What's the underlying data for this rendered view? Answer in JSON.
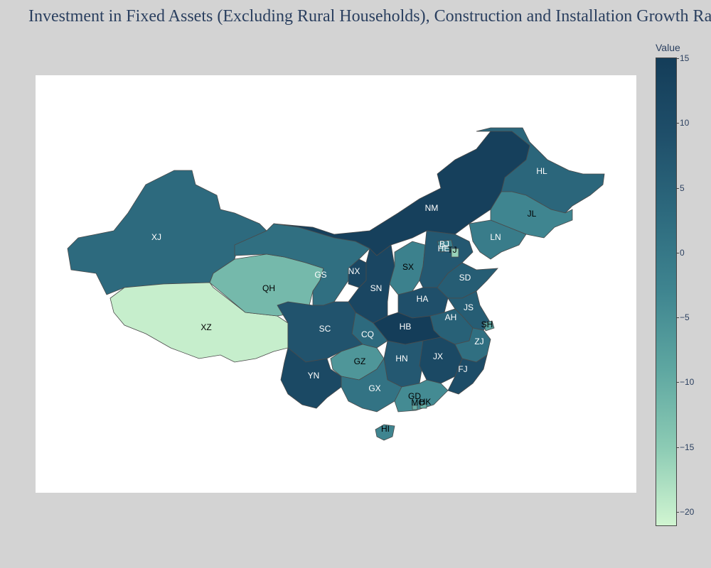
{
  "title": "Investment in Fixed Assets (Excluding Rural Households), Construction and Installation Growth Ra",
  "colorbar": {
    "title": "Value",
    "min": -21,
    "max": 15,
    "ticks": [
      {
        "value": 15,
        "label": "15"
      },
      {
        "value": 10,
        "label": "10"
      },
      {
        "value": 5,
        "label": "5"
      },
      {
        "value": 0,
        "label": "0"
      },
      {
        "value": -5,
        "label": "−5"
      },
      {
        "value": -10,
        "label": "−10"
      },
      {
        "value": -15,
        "label": "−15"
      },
      {
        "value": -20,
        "label": "−20"
      }
    ],
    "colorscale": [
      "#d1f5d1",
      "#8ccbb4",
      "#5ea7a1",
      "#3f8590",
      "#2d6a7e",
      "#1f4f6a",
      "#143d59"
    ]
  },
  "regions": [
    {
      "code": "HL",
      "value": 4
    },
    {
      "code": "JL",
      "value": -3
    },
    {
      "code": "LN",
      "value": -1
    },
    {
      "code": "NM",
      "value": 14
    },
    {
      "code": "XJ",
      "value": 3
    },
    {
      "code": "XZ",
      "value": -20
    },
    {
      "code": "QH",
      "value": -12
    },
    {
      "code": "GS",
      "value": 2
    },
    {
      "code": "NX",
      "value": 12
    },
    {
      "code": "SN",
      "value": 12
    },
    {
      "code": "SX",
      "value": -2
    },
    {
      "code": "HE",
      "value": 7
    },
    {
      "code": "BJ",
      "value": -1
    },
    {
      "code": "TJ",
      "value": -16
    },
    {
      "code": "SD",
      "value": 6
    },
    {
      "code": "HA",
      "value": 9
    },
    {
      "code": "JS",
      "value": 6
    },
    {
      "code": "AH",
      "value": 5
    },
    {
      "code": "SH",
      "value": -8
    },
    {
      "code": "HB",
      "value": 15
    },
    {
      "code": "CQ",
      "value": 3
    },
    {
      "code": "SC",
      "value": 8
    },
    {
      "code": "ZJ",
      "value": 2
    },
    {
      "code": "GZ",
      "value": -6
    },
    {
      "code": "HN",
      "value": 7
    },
    {
      "code": "JX",
      "value": 11
    },
    {
      "code": "FJ",
      "value": 10
    },
    {
      "code": "YN",
      "value": 11
    },
    {
      "code": "GX",
      "value": 1
    },
    {
      "code": "GD",
      "value": -4
    },
    {
      "code": "HK",
      "value": -10
    },
    {
      "code": "MO",
      "value": -10
    },
    {
      "code": "HI",
      "value": -3
    }
  ]
}
